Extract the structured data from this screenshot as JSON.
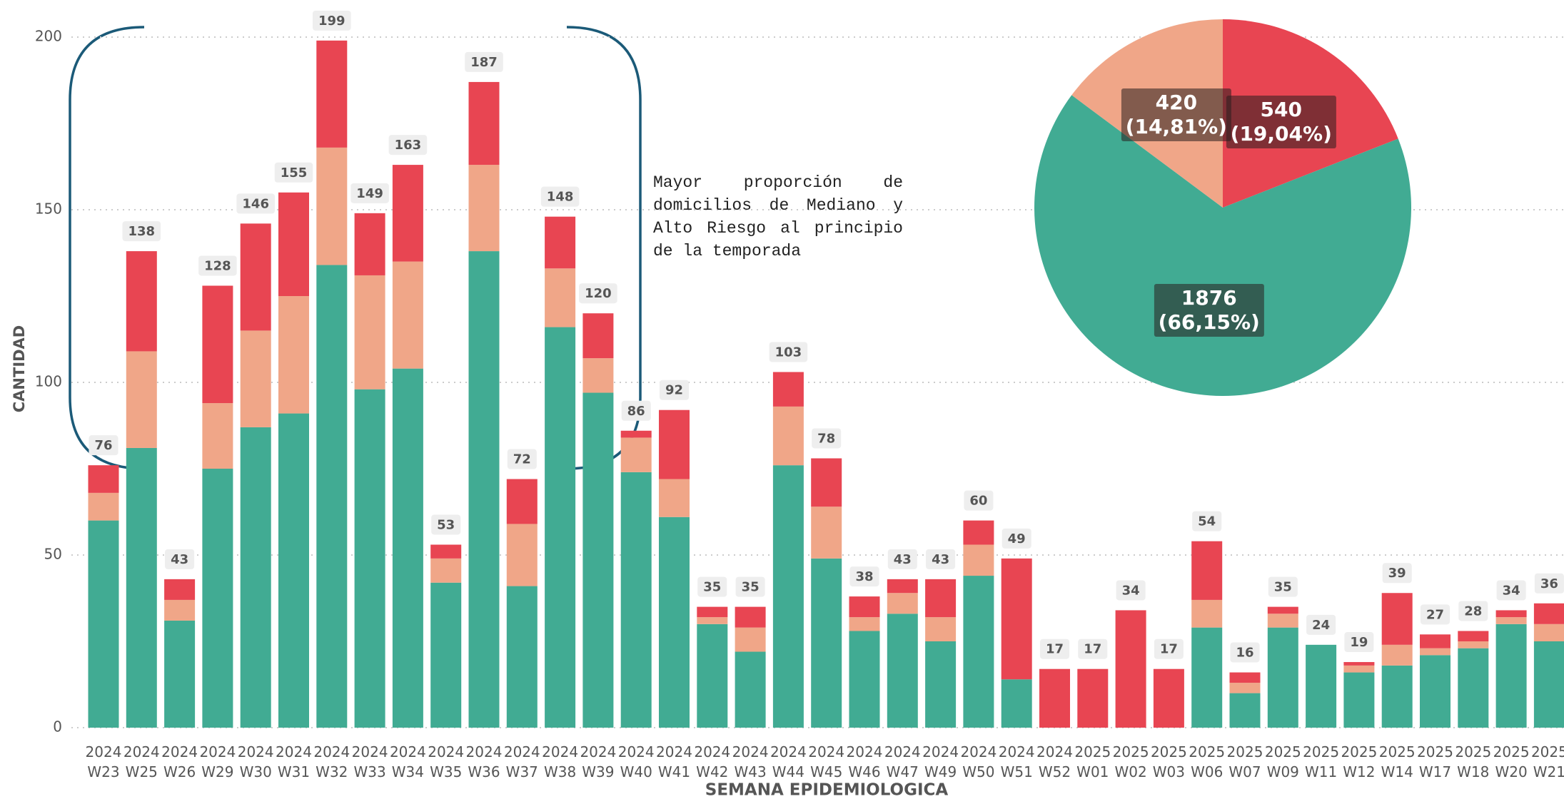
{
  "chart_data": [
    {
      "type": "stacked_bar",
      "x_label": "SEMANA EPIDEMIOLOGICA",
      "y_label": "CANTIDAD",
      "annotation": "Mayor proporción de domicilios de Mediano y Alto Riesgo al principio de la temporada",
      "categories": [
        "2024 W23",
        "2024 W25",
        "2024 W26",
        "2024 W29",
        "2024 W30",
        "2024 W31",
        "2024 W32",
        "2024 W33",
        "2024 W34",
        "2024 W35",
        "2024 W36",
        "2024 W37",
        "2024 W38",
        "2024 W39",
        "2024 W40",
        "2024 W41",
        "2024 W42",
        "2024 W43",
        "2024 W44",
        "2024 W45",
        "2024 W46",
        "2024 W47",
        "2024 W49",
        "2024 W50",
        "2024 W51",
        "2024 W52",
        "2025 W01",
        "2025 W02",
        "2025 W03",
        "2025 W06",
        "2025 W07",
        "2025 W09",
        "2025 W11",
        "2025 W12",
        "2025 W14",
        "2025 W17",
        "2025 W18",
        "2025 W20",
        "2025 W21"
      ],
      "series": [
        {
          "color": "#41ab93",
          "values": [
            60,
            81,
            31,
            75,
            87,
            91,
            134,
            98,
            104,
            42,
            138,
            41,
            116,
            97,
            74,
            61,
            30,
            22,
            76,
            49,
            28,
            33,
            25,
            44,
            14,
            0,
            0,
            0,
            0,
            29,
            10,
            29,
            24,
            16,
            18,
            21,
            23,
            30,
            25
          ]
        },
        {
          "color": "#f0a688",
          "values": [
            8,
            28,
            6,
            19,
            28,
            34,
            34,
            33,
            31,
            7,
            25,
            18,
            17,
            10,
            10,
            11,
            2,
            7,
            17,
            15,
            4,
            6,
            7,
            9,
            0,
            0,
            0,
            0,
            0,
            8,
            3,
            4,
            0,
            2,
            6,
            2,
            2,
            2,
            5
          ]
        },
        {
          "color": "#e84552",
          "values": [
            8,
            29,
            6,
            34,
            31,
            30,
            31,
            18,
            28,
            4,
            24,
            13,
            15,
            13,
            2,
            20,
            3,
            6,
            10,
            14,
            6,
            4,
            11,
            7,
            35,
            17,
            17,
            34,
            17,
            17,
            3,
            2,
            0,
            1,
            15,
            4,
            3,
            2,
            6
          ]
        }
      ],
      "totals": [
        76,
        138,
        43,
        128,
        146,
        155,
        199,
        149,
        163,
        53,
        187,
        72,
        148,
        120,
        86,
        92,
        35,
        35,
        103,
        78,
        38,
        43,
        43,
        60,
        49,
        17,
        17,
        34,
        17,
        54,
        16,
        35,
        24,
        19,
        39,
        27,
        28,
        34,
        36
      ],
      "ylim": [
        0,
        200
      ],
      "yticks": [
        0,
        50,
        100,
        150,
        200
      ],
      "grid": true
    },
    {
      "type": "pie",
      "values": [
        540,
        1876,
        420
      ],
      "value_labels": [
        "(19,04%)",
        "(66,15%)",
        "(14,81%)"
      ],
      "colors": [
        "#e84552",
        "#41ab93",
        "#f0a688"
      ]
    }
  ]
}
